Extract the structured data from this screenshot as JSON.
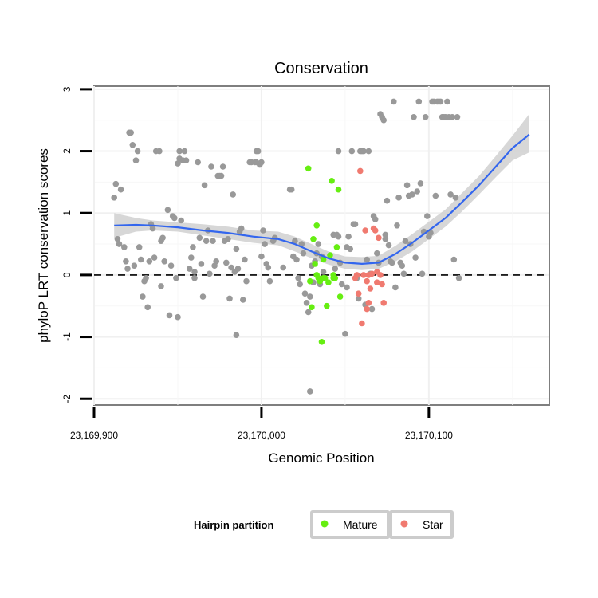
{
  "chart_data": {
    "type": "scatter",
    "title": "Conservation",
    "xlabel": "Genomic Position",
    "ylabel": "phyloP LRT conservation scores",
    "xlim": [
      23169900,
      23170172
    ],
    "ylim": [
      -2.1,
      3.05
    ],
    "x_ticks": [
      {
        "value": 23169900,
        "label": "23,169,900"
      },
      {
        "value": 23170000,
        "label": "23,170,000"
      },
      {
        "value": 23170100,
        "label": "23,170,100"
      }
    ],
    "y_ticks": [
      {
        "value": -2,
        "label": "-2"
      },
      {
        "value": -1,
        "label": "-1"
      },
      {
        "value": 0,
        "label": "0"
      },
      {
        "value": 1,
        "label": "1"
      },
      {
        "value": 2,
        "label": "2"
      },
      {
        "value": 3,
        "label": "3"
      }
    ],
    "grid": true,
    "reference_line": {
      "y": 0,
      "style": "dashed",
      "color": "#000000"
    },
    "legend": {
      "title": "Hairpin partition",
      "placement": "bottom",
      "entries": [
        {
          "label": "Mature",
          "color": "#66ee11"
        },
        {
          "label": "Star",
          "color": "#f07a70"
        }
      ]
    },
    "colors": {
      "Other": "#999999",
      "Mature": "#66ee11",
      "Star": "#f07a70",
      "smooth": "#3366ee",
      "band": "#d0d0d0"
    },
    "series": [
      {
        "group": "Other",
        "points": [
          [
            23169912,
            1.25
          ],
          [
            23169913,
            1.47
          ],
          [
            23169914,
            0.58
          ],
          [
            23169915,
            0.5
          ],
          [
            23169916,
            1.38
          ],
          [
            23169918,
            0.45
          ],
          [
            23169919,
            0.22
          ],
          [
            23169920,
            0.1
          ],
          [
            23169921,
            2.3
          ],
          [
            23169922,
            2.3
          ],
          [
            23169923,
            2.1
          ],
          [
            23169924,
            0.15
          ],
          [
            23169925,
            1.85
          ],
          [
            23169926,
            2.0
          ],
          [
            23169927,
            0.45
          ],
          [
            23169928,
            0.25
          ],
          [
            23169929,
            -0.35
          ],
          [
            23169930,
            -0.1
          ],
          [
            23169931,
            -0.05
          ],
          [
            23169932,
            -0.52
          ],
          [
            23169933,
            0.22
          ],
          [
            23169934,
            0.82
          ],
          [
            23169935,
            0.75
          ],
          [
            23169936,
            0.28
          ],
          [
            23169937,
            2.0
          ],
          [
            23169939,
            2.0
          ],
          [
            23169940,
            0.55
          ],
          [
            23169940,
            -0.18
          ],
          [
            23169941,
            0.6
          ],
          [
            23169942,
            0.22
          ],
          [
            23169944,
            1.05
          ],
          [
            23169945,
            -0.65
          ],
          [
            23169946,
            0.15
          ],
          [
            23169947,
            0.95
          ],
          [
            23169948,
            0.92
          ],
          [
            23169949,
            -0.05
          ],
          [
            23169950,
            -0.68
          ],
          [
            23169950,
            1.8
          ],
          [
            23169951,
            1.88
          ],
          [
            23169951,
            2.0
          ],
          [
            23169952,
            0.88
          ],
          [
            23169953,
            1.85
          ],
          [
            23169954,
            2.0
          ],
          [
            23169955,
            1.85
          ],
          [
            23169957,
            0.1
          ],
          [
            23169958,
            0.28
          ],
          [
            23169959,
            0.45
          ],
          [
            23169960,
            0.05
          ],
          [
            23169960,
            -0.05
          ],
          [
            23169962,
            1.82
          ],
          [
            23169963,
            0.6
          ],
          [
            23169964,
            0.18
          ],
          [
            23169965,
            -0.35
          ],
          [
            23169966,
            1.45
          ],
          [
            23169967,
            0.55
          ],
          [
            23169968,
            0.72
          ],
          [
            23169969,
            0.02
          ],
          [
            23169970,
            1.75
          ],
          [
            23169971,
            0.55
          ],
          [
            23169972,
            0.15
          ],
          [
            23169973,
            0.22
          ],
          [
            23169974,
            1.6
          ],
          [
            23169975,
            1.6
          ],
          [
            23169976,
            1.6
          ],
          [
            23169977,
            1.75
          ],
          [
            23169978,
            0.55
          ],
          [
            23169979,
            0.2
          ],
          [
            23169980,
            0.58
          ],
          [
            23169981,
            -0.38
          ],
          [
            23169982,
            0.12
          ],
          [
            23169983,
            1.3
          ],
          [
            23169984,
            0.05
          ],
          [
            23169985,
            -0.97
          ],
          [
            23169985,
            0.42
          ],
          [
            23169986,
            0.1
          ],
          [
            23169987,
            0.7
          ],
          [
            23169988,
            0.75
          ],
          [
            23169989,
            -0.4
          ],
          [
            23169990,
            0.25
          ],
          [
            23169991,
            -0.1
          ],
          [
            23169993,
            1.82
          ],
          [
            23169994,
            1.82
          ],
          [
            23169996,
            1.82
          ],
          [
            23169997,
            1.82
          ],
          [
            23169997,
            2.0
          ],
          [
            23169998,
            2.0
          ],
          [
            23169999,
            1.78
          ],
          [
            23170000,
            1.82
          ],
          [
            23170000,
            0.3
          ],
          [
            23170001,
            0.72
          ],
          [
            23170002,
            0.5
          ],
          [
            23170003,
            0.18
          ],
          [
            23170004,
            0.12
          ],
          [
            23170005,
            -0.1
          ],
          [
            23170007,
            0.55
          ],
          [
            23170008,
            0.6
          ],
          [
            23170013,
            0.12
          ],
          [
            23170017,
            1.38
          ],
          [
            23170018,
            1.38
          ],
          [
            23170019,
            0.3
          ],
          [
            23170020,
            0.55
          ],
          [
            23170021,
            0.25
          ],
          [
            23170022,
            -0.05
          ],
          [
            23170023,
            -0.15
          ],
          [
            23170024,
            0.5
          ],
          [
            23170025,
            0.35
          ],
          [
            23170026,
            -0.3
          ],
          [
            23170027,
            -0.45
          ],
          [
            23170028,
            -0.6
          ],
          [
            23170029,
            -1.88
          ],
          [
            23170029,
            -0.35
          ],
          [
            23170030,
            0.15
          ],
          [
            23170031,
            -0.12
          ],
          [
            23170032,
            0.22
          ],
          [
            23170033,
            0.35
          ],
          [
            23170034,
            0.5
          ],
          [
            23170035,
            -0.15
          ],
          [
            23170036,
            0.3
          ],
          [
            23170037,
            0.05
          ],
          [
            23170043,
            0.65
          ],
          [
            23170044,
            0.1
          ],
          [
            23170045,
            0.65
          ],
          [
            23170046,
            0.62
          ],
          [
            23170046,
            2.0
          ],
          [
            23170047,
            0.2
          ],
          [
            23170048,
            -0.15
          ],
          [
            23170050,
            -0.95
          ],
          [
            23170051,
            -0.2
          ],
          [
            23170051,
            0.45
          ],
          [
            23170052,
            0.62
          ],
          [
            23170053,
            0.42
          ],
          [
            23170054,
            2.0
          ],
          [
            23170055,
            0.82
          ],
          [
            23170056,
            0.82
          ],
          [
            23170057,
            -0.05
          ],
          [
            23170058,
            -0.38
          ],
          [
            23170059,
            2.0
          ],
          [
            23170060,
            2.0
          ],
          [
            23170061,
            2.0
          ],
          [
            23170062,
            -0.48
          ],
          [
            23170063,
            0.25
          ],
          [
            23170064,
            2.0
          ],
          [
            23170065,
            0.02
          ],
          [
            23170066,
            -0.55
          ],
          [
            23170067,
            0.95
          ],
          [
            23170068,
            0.9
          ],
          [
            23170069,
            0.35
          ],
          [
            23170070,
            0.2
          ],
          [
            23170071,
            2.6
          ],
          [
            23170072,
            2.55
          ],
          [
            23170073,
            2.5
          ],
          [
            23170074,
            0.58
          ],
          [
            23170074,
            0.65
          ],
          [
            23170075,
            1.2
          ],
          [
            23170076,
            0.48
          ],
          [
            23170077,
            0.22
          ],
          [
            23170078,
            0.2
          ],
          [
            23170079,
            2.8
          ],
          [
            23170080,
            -0.2
          ],
          [
            23170081,
            0.8
          ],
          [
            23170082,
            1.25
          ],
          [
            23170083,
            0.2
          ],
          [
            23170084,
            0.15
          ],
          [
            23170085,
            0.02
          ],
          [
            23170086,
            0.55
          ],
          [
            23170087,
            1.45
          ],
          [
            23170088,
            1.28
          ],
          [
            23170089,
            0.5
          ],
          [
            23170090,
            1.3
          ],
          [
            23170091,
            2.55
          ],
          [
            23170092,
            0.28
          ],
          [
            23170093,
            1.35
          ],
          [
            23170094,
            2.8
          ],
          [
            23170095,
            1.48
          ],
          [
            23170096,
            0.02
          ],
          [
            23170097,
            0.7
          ],
          [
            23170098,
            2.55
          ],
          [
            23170099,
            0.95
          ],
          [
            23170100,
            0.62
          ],
          [
            23170101,
            0.68
          ],
          [
            23170102,
            2.8
          ],
          [
            23170103,
            2.8
          ],
          [
            23170104,
            1.28
          ],
          [
            23170105,
            2.8
          ],
          [
            23170106,
            2.8
          ],
          [
            23170107,
            2.8
          ],
          [
            23170108,
            2.55
          ],
          [
            23170109,
            2.55
          ],
          [
            23170110,
            2.55
          ],
          [
            23170111,
            2.8
          ],
          [
            23170112,
            2.55
          ],
          [
            23170113,
            1.3
          ],
          [
            23170114,
            2.55
          ],
          [
            23170115,
            0.25
          ],
          [
            23170116,
            1.25
          ],
          [
            23170117,
            2.55
          ],
          [
            23170118,
            -0.05
          ]
        ]
      },
      {
        "group": "Mature",
        "points": [
          [
            23170028,
            1.72
          ],
          [
            23170029,
            -0.1
          ],
          [
            23170030,
            -0.52
          ],
          [
            23170031,
            0.58
          ],
          [
            23170032,
            0.18
          ],
          [
            23170033,
            0.8
          ],
          [
            23170033,
            0.0
          ],
          [
            23170034,
            -0.05
          ],
          [
            23170035,
            -0.1
          ],
          [
            23170036,
            -1.08
          ],
          [
            23170037,
            -0.05
          ],
          [
            23170037,
            0.25
          ],
          [
            23170038,
            -0.05
          ],
          [
            23170039,
            -0.5
          ],
          [
            23170040,
            -0.12
          ],
          [
            23170041,
            0.32
          ],
          [
            23170042,
            1.52
          ],
          [
            23170043,
            0.0
          ],
          [
            23170043,
            -0.05
          ],
          [
            23170044,
            -0.05
          ],
          [
            23170045,
            0.45
          ],
          [
            23170046,
            1.38
          ],
          [
            23170047,
            -0.35
          ]
        ]
      },
      {
        "group": "Star",
        "points": [
          [
            23170056,
            -0.05
          ],
          [
            23170057,
            0.0
          ],
          [
            23170058,
            -0.3
          ],
          [
            23170059,
            1.68
          ],
          [
            23170060,
            -0.78
          ],
          [
            23170061,
            0.0
          ],
          [
            23170062,
            0.72
          ],
          [
            23170063,
            -0.1
          ],
          [
            23170063,
            -0.55
          ],
          [
            23170064,
            0.0
          ],
          [
            23170064,
            -0.45
          ],
          [
            23170065,
            -0.22
          ],
          [
            23170066,
            0.02
          ],
          [
            23170067,
            0.75
          ],
          [
            23170068,
            0.72
          ],
          [
            23170069,
            0.05
          ],
          [
            23170069,
            -0.12
          ],
          [
            23170070,
            0.6
          ],
          [
            23170071,
            0.0
          ],
          [
            23170072,
            -0.15
          ],
          [
            23170073,
            -0.45
          ]
        ]
      }
    ],
    "smooth": {
      "x": [
        23169912,
        23169925,
        23169935,
        23169950,
        23169965,
        23169980,
        23169995,
        23170010,
        23170020,
        23170030,
        23170040,
        23170050,
        23170060,
        23170070,
        23170080,
        23170090,
        23170100,
        23170110,
        23170120,
        23170130,
        23170140,
        23170150,
        23170160
      ],
      "y": [
        0.8,
        0.81,
        0.8,
        0.77,
        0.72,
        0.68,
        0.62,
        0.58,
        0.5,
        0.38,
        0.27,
        0.2,
        0.18,
        0.2,
        0.34,
        0.52,
        0.72,
        0.92,
        1.18,
        1.45,
        1.75,
        2.05,
        2.27
      ],
      "band_lower": [
        0.6,
        0.7,
        0.72,
        0.7,
        0.64,
        0.58,
        0.52,
        0.48,
        0.38,
        0.27,
        0.17,
        0.1,
        0.08,
        0.1,
        0.22,
        0.38,
        0.58,
        0.78,
        1.03,
        1.3,
        1.58,
        1.85,
        1.98
      ],
      "band_upper": [
        1.0,
        0.92,
        0.88,
        0.85,
        0.82,
        0.78,
        0.72,
        0.7,
        0.62,
        0.5,
        0.38,
        0.3,
        0.29,
        0.31,
        0.47,
        0.66,
        0.86,
        1.06,
        1.33,
        1.6,
        1.92,
        2.25,
        2.6
      ]
    }
  }
}
